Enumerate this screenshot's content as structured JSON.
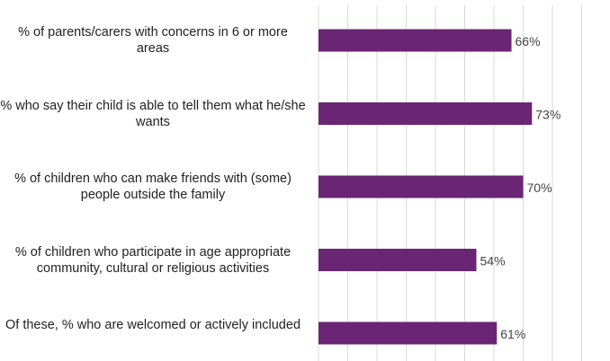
{
  "chart_data": {
    "type": "bar",
    "orientation": "horizontal",
    "title": "",
    "xlabel": "",
    "ylabel": "",
    "categories": [
      "% of parents/carers with concerns in 6 or more areas",
      "% who say their child is able to tell them what he/she wants",
      "% of children who can make friends with (some) people outside the family",
      "% of children who participate in age appropriate community, cultural or religious activities",
      "Of these, % who are welcomed or actively included"
    ],
    "values": [
      66,
      73,
      70,
      54,
      61
    ],
    "value_labels": [
      "66%",
      "73%",
      "70%",
      "54%",
      "61%"
    ],
    "xlim": [
      0,
      100
    ],
    "grid": true,
    "bar_color": "#6a2574"
  }
}
